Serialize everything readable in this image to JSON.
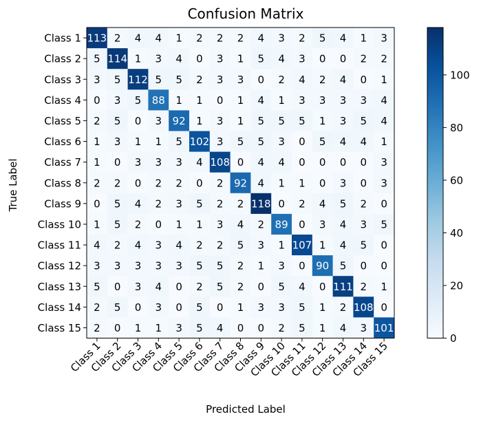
{
  "chart_data": {
    "type": "heatmap",
    "title": "Confusion Matrix",
    "xlabel": "Predicted Label",
    "ylabel": "True Label",
    "x_categories": [
      "Class 1",
      "Class 2",
      "Class 3",
      "Class 4",
      "Class 5",
      "Class 6",
      "Class 7",
      "Class 8",
      "Class 9",
      "Class 10",
      "Class 11",
      "Class 12",
      "Class 13",
      "Class 14",
      "Class 15"
    ],
    "y_categories": [
      "Class 1",
      "Class 2",
      "Class 3",
      "Class 4",
      "Class 5",
      "Class 6",
      "Class 7",
      "Class 8",
      "Class 9",
      "Class 10",
      "Class 11",
      "Class 12",
      "Class 13",
      "Class 14",
      "Class 15"
    ],
    "values": [
      [
        113,
        2,
        4,
        4,
        1,
        2,
        2,
        2,
        4,
        3,
        2,
        5,
        4,
        1,
        3
      ],
      [
        5,
        114,
        1,
        3,
        4,
        0,
        3,
        1,
        5,
        4,
        3,
        0,
        0,
        2,
        2
      ],
      [
        3,
        5,
        112,
        5,
        5,
        2,
        3,
        3,
        0,
        2,
        4,
        2,
        4,
        0,
        1
      ],
      [
        0,
        3,
        5,
        88,
        1,
        1,
        0,
        1,
        4,
        1,
        3,
        3,
        3,
        3,
        4
      ],
      [
        2,
        5,
        0,
        3,
        92,
        1,
        3,
        1,
        5,
        5,
        5,
        1,
        3,
        5,
        4
      ],
      [
        1,
        3,
        1,
        1,
        5,
        102,
        3,
        5,
        5,
        3,
        0,
        5,
        4,
        4,
        1
      ],
      [
        1,
        0,
        3,
        3,
        3,
        4,
        108,
        0,
        4,
        4,
        0,
        0,
        0,
        0,
        3
      ],
      [
        2,
        2,
        0,
        2,
        2,
        0,
        2,
        92,
        4,
        1,
        1,
        0,
        3,
        0,
        3
      ],
      [
        0,
        5,
        4,
        2,
        3,
        5,
        2,
        2,
        118,
        0,
        2,
        4,
        5,
        2,
        0
      ],
      [
        1,
        5,
        2,
        0,
        1,
        1,
        3,
        4,
        2,
        89,
        0,
        3,
        4,
        3,
        5
      ],
      [
        4,
        2,
        4,
        3,
        4,
        2,
        2,
        5,
        3,
        1,
        107,
        1,
        4,
        5,
        0
      ],
      [
        3,
        3,
        3,
        3,
        3,
        5,
        5,
        2,
        1,
        3,
        0,
        90,
        5,
        0,
        0
      ],
      [
        5,
        0,
        3,
        4,
        0,
        2,
        5,
        2,
        0,
        5,
        4,
        0,
        111,
        2,
        1
      ],
      [
        2,
        5,
        0,
        3,
        0,
        5,
        0,
        1,
        3,
        3,
        5,
        1,
        2,
        108,
        0
      ],
      [
        2,
        0,
        1,
        1,
        3,
        5,
        4,
        0,
        0,
        2,
        5,
        1,
        4,
        3,
        101
      ]
    ],
    "colormap": "Blues",
    "vmin": 0,
    "vmax": 118,
    "colorbar_ticks": [
      0,
      20,
      40,
      60,
      80,
      100
    ],
    "grid": false,
    "legend": "colorbar-right"
  }
}
